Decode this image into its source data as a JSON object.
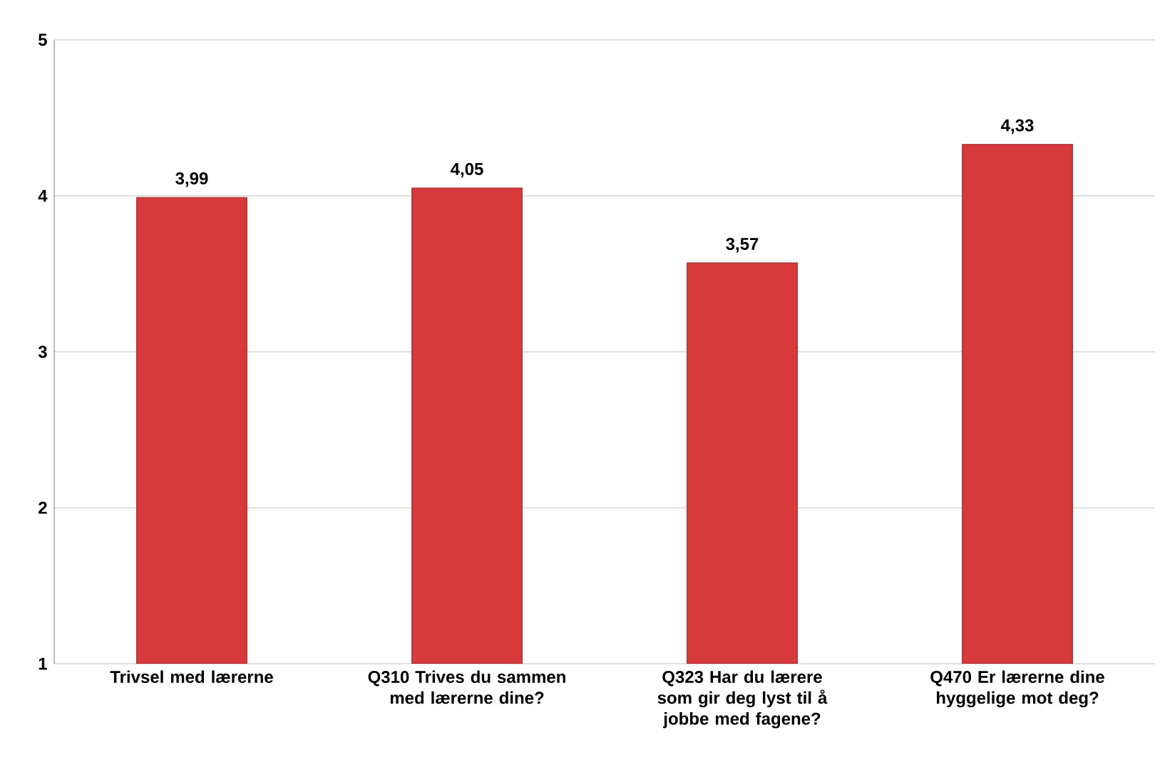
{
  "chart_data": {
    "type": "bar",
    "categories": [
      "Trivsel med lærerne",
      "Q310 Trives du sammen med lærerne dine?",
      "Q323 Har du lærere som gir deg lyst til å jobbe med fagene?",
      "Q470 Er lærerne dine hyggelige mot deg?"
    ],
    "values": [
      3.99,
      4.05,
      3.57,
      4.33
    ],
    "value_labels": [
      "3,99",
      "4,05",
      "3,57",
      "4,33"
    ],
    "color": "#d63a3a",
    "ylim": [
      1,
      5
    ],
    "yticks": [
      1,
      2,
      3,
      4,
      5
    ],
    "grid": "y"
  }
}
